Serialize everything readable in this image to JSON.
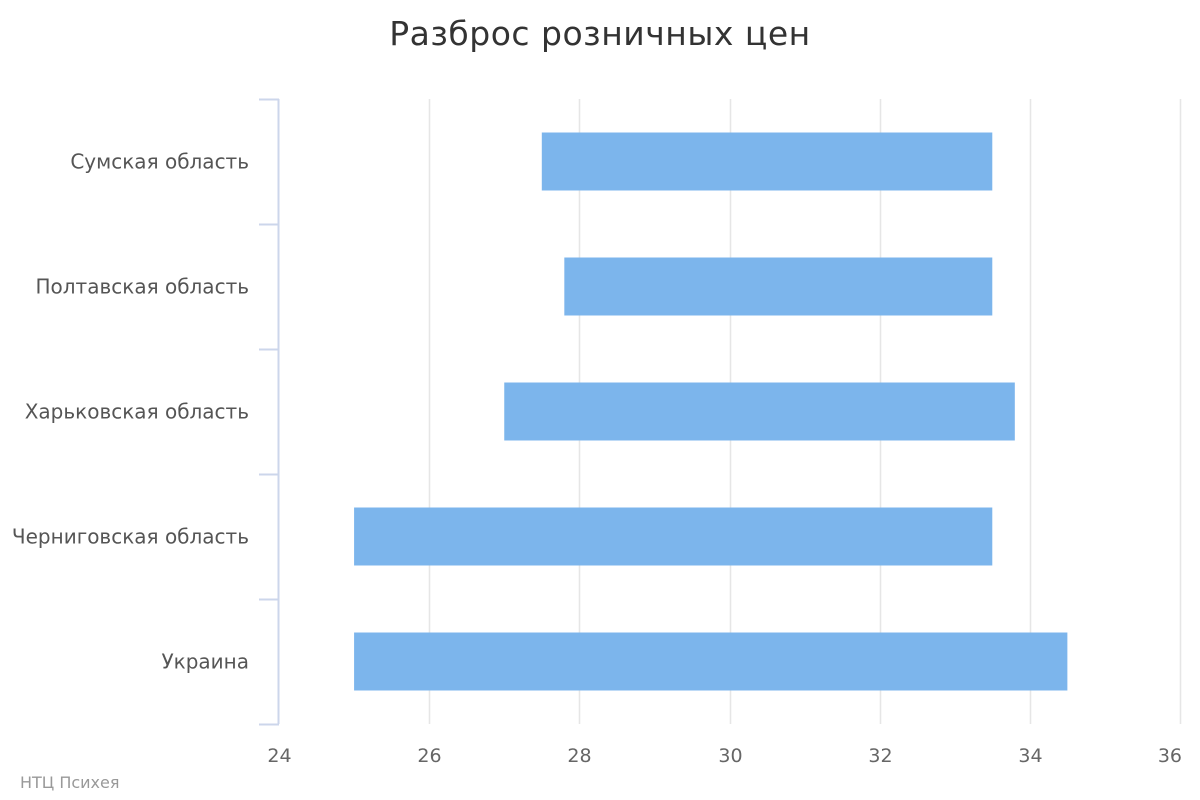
{
  "chart_data": {
    "type": "bar",
    "orientation": "horizontal",
    "title": "Разброс розничных цен",
    "categories": [
      "Сумская область",
      "Полтавская область",
      "Харьковская область",
      "Черниговская область",
      "Украина"
    ],
    "series": [
      {
        "ranges": [
          [
            27.5,
            33.5
          ],
          [
            27.8,
            33.5
          ],
          [
            27.0,
            33.8
          ],
          [
            25.0,
            33.5
          ],
          [
            25.0,
            34.5
          ]
        ]
      }
    ],
    "xticks": [
      "24",
      "26",
      "28",
      "30",
      "32",
      "34",
      "36"
    ],
    "xlim": [
      24,
      36
    ],
    "grid": true,
    "bar_color": "#7cb5ec",
    "grid_color": "#e6e6e6",
    "axis_color": "#ccd6eb"
  },
  "credits": "НТЦ Психея"
}
